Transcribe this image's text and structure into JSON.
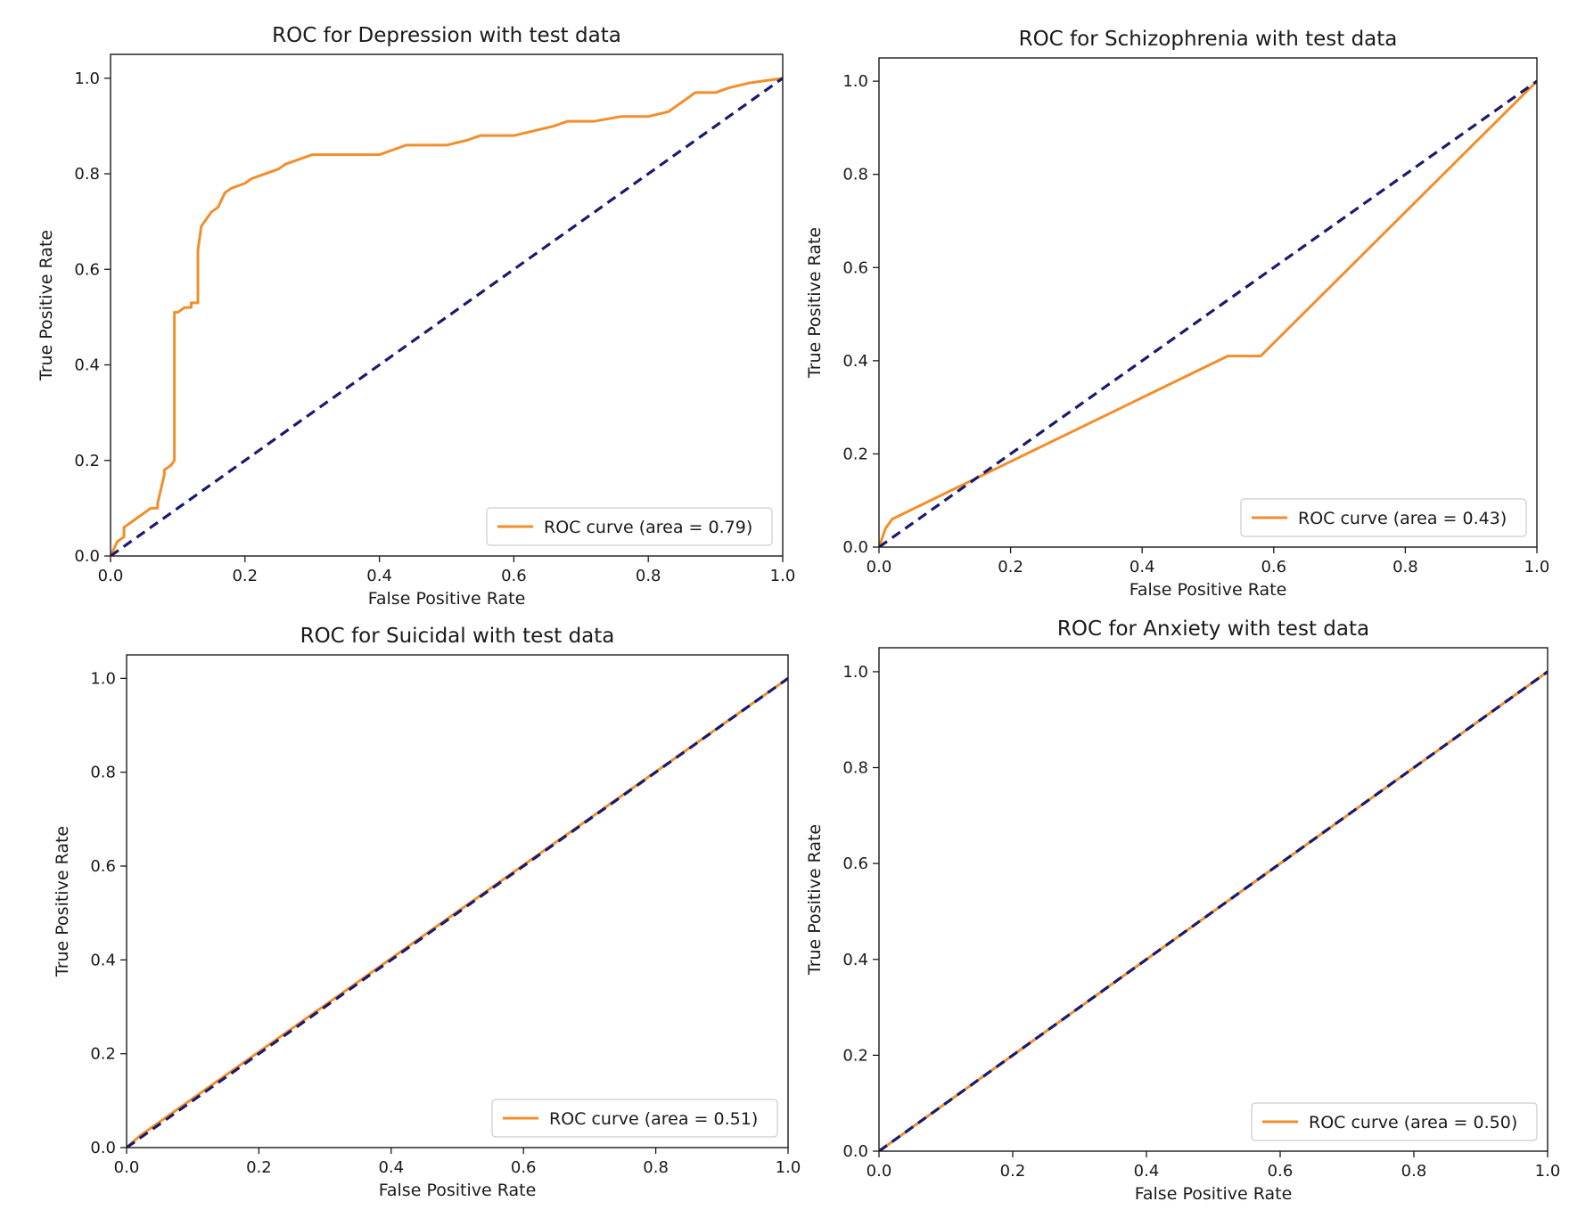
{
  "chart_data": [
    {
      "type": "line",
      "title": "ROC for Depression with test data",
      "xlabel": "False Positive Rate",
      "ylabel": "True Positive Rate",
      "xlim": [
        0.0,
        1.0
      ],
      "ylim": [
        0.0,
        1.05
      ],
      "xticks": [
        "0.0",
        "0.2",
        "0.4",
        "0.6",
        "0.8",
        "1.0"
      ],
      "yticks": [
        "0.0",
        "0.2",
        "0.4",
        "0.6",
        "0.8",
        "1.0"
      ],
      "legend_location": "lower-right",
      "legend_label": "ROC curve (area = 0.79)",
      "series": [
        {
          "name": "ROC curve (area = 0.79)",
          "color": "#f28e2b",
          "style": "solid",
          "x": [
            0.0,
            0.01,
            0.02,
            0.02,
            0.03,
            0.04,
            0.05,
            0.06,
            0.07,
            0.07,
            0.08,
            0.08,
            0.09,
            0.095,
            0.095,
            0.1,
            0.11,
            0.12,
            0.12,
            0.13,
            0.13,
            0.135,
            0.14,
            0.15,
            0.16,
            0.17,
            0.17,
            0.18,
            0.2,
            0.21,
            0.23,
            0.25,
            0.26,
            0.28,
            0.3,
            0.33,
            0.36,
            0.4,
            0.42,
            0.44,
            0.5,
            0.53,
            0.55,
            0.6,
            0.66,
            0.68,
            0.72,
            0.76,
            0.8,
            0.83,
            0.85,
            0.86,
            0.87,
            0.9,
            0.92,
            0.95,
            1.0
          ],
          "y": [
            0.0,
            0.03,
            0.04,
            0.06,
            0.07,
            0.08,
            0.09,
            0.1,
            0.1,
            0.11,
            0.17,
            0.18,
            0.19,
            0.2,
            0.51,
            0.51,
            0.52,
            0.52,
            0.53,
            0.53,
            0.64,
            0.69,
            0.7,
            0.72,
            0.73,
            0.76,
            0.76,
            0.77,
            0.78,
            0.79,
            0.8,
            0.81,
            0.82,
            0.83,
            0.84,
            0.84,
            0.84,
            0.84,
            0.85,
            0.86,
            0.86,
            0.87,
            0.88,
            0.88,
            0.9,
            0.91,
            0.91,
            0.92,
            0.92,
            0.93,
            0.95,
            0.96,
            0.97,
            0.97,
            0.98,
            0.99,
            1.0
          ]
        },
        {
          "name": "chance",
          "color": "#1a1a6e",
          "style": "dashed",
          "x": [
            0.0,
            1.0
          ],
          "y": [
            0.0,
            1.0
          ]
        }
      ]
    },
    {
      "type": "line",
      "title": "ROC for Schizophrenia with test data",
      "xlabel": "False Positive Rate",
      "ylabel": "True Positive Rate",
      "xlim": [
        0.0,
        1.0
      ],
      "ylim": [
        0.0,
        1.05
      ],
      "xticks": [
        "0.0",
        "0.2",
        "0.4",
        "0.6",
        "0.8",
        "1.0"
      ],
      "yticks": [
        "0.0",
        "0.2",
        "0.4",
        "0.6",
        "0.8",
        "1.0"
      ],
      "legend_location": "lower-right",
      "legend_label": "ROC curve (area = 0.43)",
      "series": [
        {
          "name": "ROC curve (area = 0.43)",
          "color": "#f28e2b",
          "style": "solid",
          "x": [
            0.0,
            0.01,
            0.02,
            0.53,
            0.58,
            1.0
          ],
          "y": [
            0.0,
            0.04,
            0.06,
            0.41,
            0.41,
            1.0
          ]
        },
        {
          "name": "chance",
          "color": "#1a1a6e",
          "style": "dashed",
          "x": [
            0.0,
            1.0
          ],
          "y": [
            0.0,
            1.0
          ]
        }
      ]
    },
    {
      "type": "line",
      "title": "ROC for Suicidal with test data",
      "xlabel": "False Positive Rate",
      "ylabel": "True Positive Rate",
      "xlim": [
        0.0,
        1.0
      ],
      "ylim": [
        0.0,
        1.05
      ],
      "xticks": [
        "0.0",
        "0.2",
        "0.4",
        "0.6",
        "0.8",
        "1.0"
      ],
      "yticks": [
        "0.0",
        "0.2",
        "0.4",
        "0.6",
        "0.8",
        "1.0"
      ],
      "legend_location": "lower-right",
      "legend_label": "ROC curve (area = 0.51)",
      "series": [
        {
          "name": "ROC curve (area = 0.51)",
          "color": "#f28e2b",
          "style": "solid",
          "x": [
            0.0,
            0.02,
            1.0
          ],
          "y": [
            0.0,
            0.025,
            1.0
          ]
        },
        {
          "name": "chance",
          "color": "#1a1a6e",
          "style": "dashed",
          "x": [
            0.0,
            1.0
          ],
          "y": [
            0.0,
            1.0
          ]
        }
      ]
    },
    {
      "type": "line",
      "title": "ROC for Anxiety with test data",
      "xlabel": "False Positive Rate",
      "ylabel": "True Positive Rate",
      "xlim": [
        0.0,
        1.0
      ],
      "ylim": [
        0.0,
        1.05
      ],
      "xticks": [
        "0.0",
        "0.2",
        "0.4",
        "0.6",
        "0.8",
        "1.0"
      ],
      "yticks": [
        "0.0",
        "0.2",
        "0.4",
        "0.6",
        "0.8",
        "1.0"
      ],
      "legend_location": "lower-right",
      "legend_label": "ROC curve (area = 0.50)",
      "series": [
        {
          "name": "ROC curve (area = 0.50)",
          "color": "#f28e2b",
          "style": "solid",
          "x": [
            0.0,
            1.0
          ],
          "y": [
            0.0,
            1.0
          ]
        },
        {
          "name": "chance",
          "color": "#1a1a6e",
          "style": "dashed",
          "x": [
            0.0,
            1.0
          ],
          "y": [
            0.0,
            1.0
          ]
        }
      ]
    }
  ]
}
